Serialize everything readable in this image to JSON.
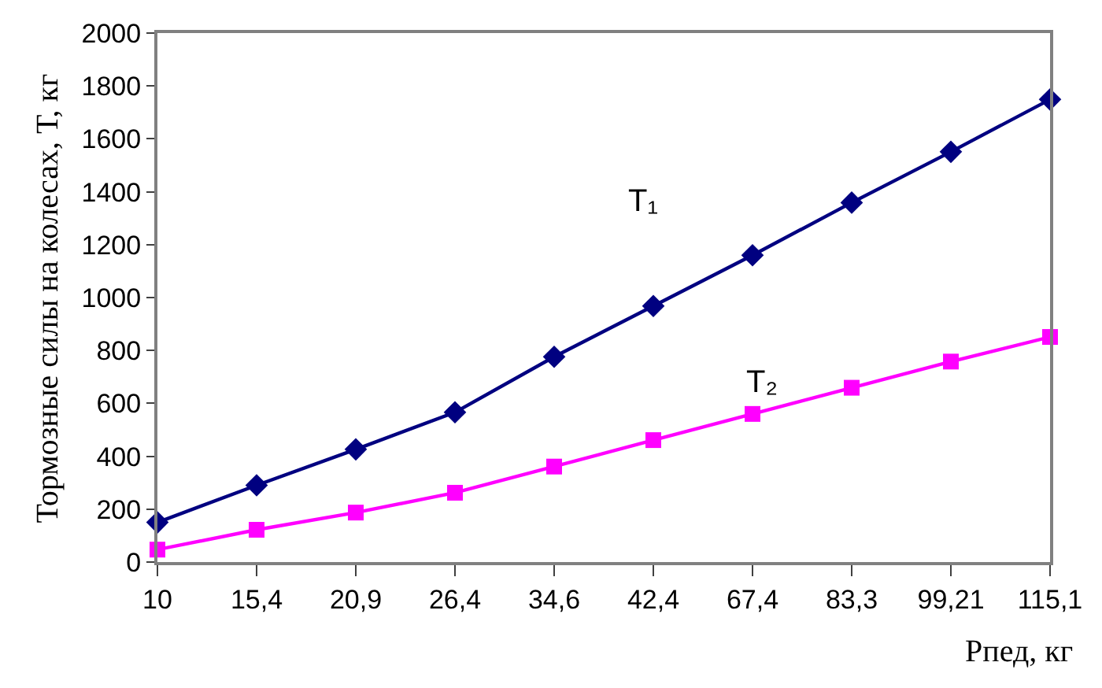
{
  "chart_data": {
    "type": "line",
    "categories": [
      "10",
      "15,4",
      "20,9",
      "26,4",
      "34,6",
      "42,4",
      "67,4",
      "83,3",
      "99,21",
      "115,1"
    ],
    "series": [
      {
        "name": "T₁",
        "color": "#000080",
        "marker": "diamond",
        "values": [
          150,
          290,
          426,
          566,
          776,
          968,
          1160,
          1359,
          1551,
          1749
        ]
      },
      {
        "name": "T₂",
        "color": "#ff00ff",
        "marker": "square",
        "values": [
          47,
          122,
          187,
          262,
          361,
          461,
          560,
          659,
          758,
          851
        ]
      }
    ],
    "xlabel": "Рпед, кг",
    "ylabel": "Тормозные силы на колесах, Т, кг",
    "ylim": [
      0,
      2000
    ],
    "yticks": [
      0,
      200,
      400,
      600,
      800,
      1000,
      1200,
      1400,
      1600,
      1800,
      2000
    ],
    "legend": false,
    "line_style": "solid"
  }
}
